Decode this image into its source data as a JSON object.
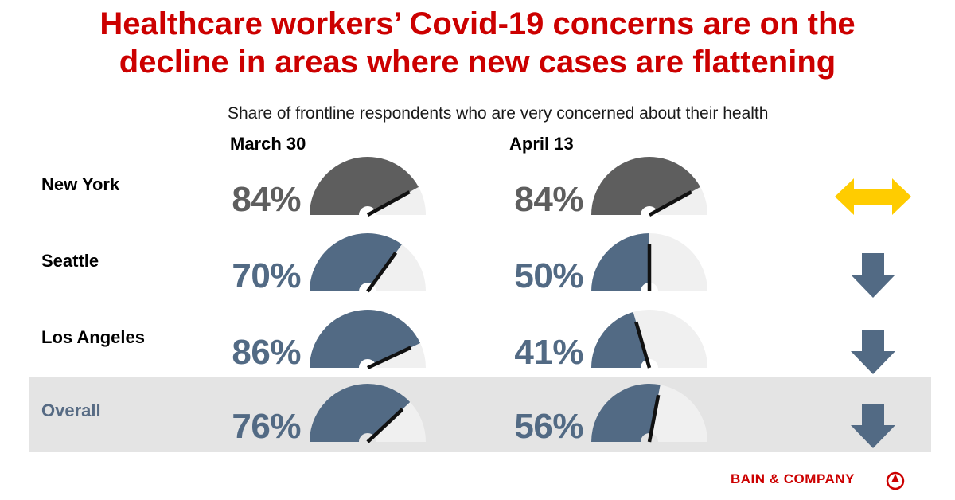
{
  "title_line1": "Healthcare workers’ Covid-19 concerns are on the",
  "title_line2": "decline in areas where new cases are flattening",
  "brand": "BAIN & COMPANY",
  "colors": {
    "title_red": "#cc0000",
    "new_york_fill": "#5e5e5e",
    "fill": "#526a84",
    "track": "#f0f0f0",
    "needle": "#111111",
    "arrow_flat": "#ffcc00",
    "arrow_down": "#526a84",
    "overall_band": "#e4e4e4"
  },
  "chart_data": {
    "type": "gauge",
    "title": "Healthcare workers’ Covid-19 concerns are on the decline in areas where new cases are flattening",
    "subtitle": "Share of frontline respondents who are very concerned about their health",
    "columns": [
      "March 30",
      "April 13"
    ],
    "unit": "%",
    "rows": [
      {
        "label": "New York",
        "values": [
          84,
          84
        ],
        "labels": [
          "84%",
          "84%"
        ],
        "trend": "unchanged",
        "trend_icon": "double-arrow-icon"
      },
      {
        "label": "Seattle",
        "values": [
          70,
          50
        ],
        "labels": [
          "70%",
          "50%"
        ],
        "trend": "down",
        "trend_icon": "down-arrow-icon"
      },
      {
        "label": "Los Angeles",
        "values": [
          86,
          41
        ],
        "labels": [
          "86%",
          "41%"
        ],
        "trend": "down",
        "trend_icon": "down-arrow-icon"
      },
      {
        "label": "Overall",
        "values": [
          76,
          56
        ],
        "labels": [
          "76%",
          "56%"
        ],
        "trend": "down",
        "trend_icon": "down-arrow-icon"
      }
    ]
  }
}
